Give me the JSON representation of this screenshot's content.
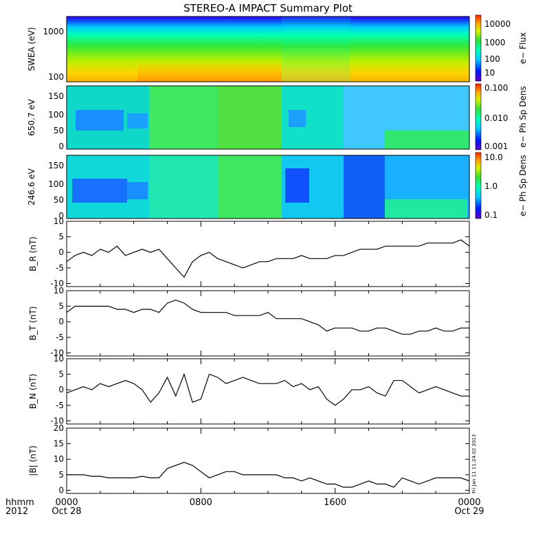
{
  "title": "STEREO-A IMPACT Summary Plot",
  "stamp": "Fri Jan 11 11:24:02 2013",
  "time_axis": {
    "labels": [
      {
        "hours": 0,
        "time": "0000",
        "date": "Oct 28"
      },
      {
        "hours": 8,
        "time": "0800",
        "date": ""
      },
      {
        "hours": 16,
        "time": "1600",
        "date": ""
      },
      {
        "hours": 24,
        "time": "0000",
        "date": "Oct 29"
      }
    ],
    "corner_top": "hhmm",
    "corner_bottom": "2012"
  },
  "colorbars": [
    {
      "label": "e− Flux",
      "ticks": [
        "10000",
        "1000",
        "100",
        "10"
      ]
    },
    {
      "label": "e− Ph Sp Dens",
      "ticks": [
        "0.100",
        "0.010",
        "0.001"
      ]
    },
    {
      "label": "e− Ph Sp Dens",
      "ticks": [
        "10.0",
        "1.0",
        "0.1"
      ]
    }
  ],
  "spectrograms": [
    {
      "ylabel": "SWEA (eV)",
      "yticks": [
        "1000",
        "100"
      ]
    },
    {
      "ylabel": "650.7 eV",
      "yticks": [
        "150",
        "100",
        "50",
        "0"
      ]
    },
    {
      "ylabel": "246.6 eV",
      "yticks": [
        "150",
        "100",
        "50",
        "0"
      ]
    }
  ],
  "chart_data": [
    {
      "type": "line",
      "ylabel": "B_R (nT)",
      "yticks": [
        "10",
        "5",
        "0",
        "-5",
        "-10"
      ],
      "ylim": [
        -11,
        10
      ],
      "x_hours": [
        0,
        0.5,
        1,
        1.5,
        2,
        2.5,
        3,
        3.5,
        4,
        4.5,
        5,
        5.5,
        6,
        6.5,
        7,
        7.5,
        8,
        8.5,
        9,
        9.5,
        10,
        10.5,
        11,
        11.5,
        12,
        12.5,
        13,
        13.5,
        14,
        14.5,
        15,
        15.5,
        16,
        16.5,
        17,
        17.5,
        18,
        18.5,
        19,
        19.5,
        20,
        20.5,
        21,
        21.5,
        22,
        22.5,
        23,
        23.5,
        24
      ],
      "values": [
        -3,
        -1,
        0,
        -1,
        1,
        0,
        2,
        -1,
        0,
        1,
        0,
        1,
        -2,
        -5,
        -8,
        -3,
        -1,
        0,
        -2,
        -3,
        -4,
        -5,
        -4,
        -3,
        -3,
        -2,
        -2,
        -2,
        -1,
        -2,
        -2,
        -2,
        -1,
        -1,
        0,
        1,
        1,
        1,
        2,
        2,
        2,
        2,
        2,
        3,
        3,
        3,
        3,
        4,
        2
      ]
    },
    {
      "type": "line",
      "ylabel": "B_T (nT)",
      "yticks": [
        "10",
        "5",
        "0",
        "-5",
        "-10"
      ],
      "ylim": [
        -11,
        10
      ],
      "x_hours": [
        0,
        0.5,
        1,
        1.5,
        2,
        2.5,
        3,
        3.5,
        4,
        4.5,
        5,
        5.5,
        6,
        6.5,
        7,
        7.5,
        8,
        8.5,
        9,
        9.5,
        10,
        10.5,
        11,
        11.5,
        12,
        12.5,
        13,
        13.5,
        14,
        14.5,
        15,
        15.5,
        16,
        16.5,
        17,
        17.5,
        18,
        18.5,
        19,
        19.5,
        20,
        20.5,
        21,
        21.5,
        22,
        22.5,
        23,
        23.5,
        24
      ],
      "values": [
        3,
        5,
        5,
        5,
        5,
        5,
        4,
        4,
        3,
        4,
        4,
        3,
        6,
        7,
        6,
        4,
        3,
        3,
        3,
        3,
        2,
        2,
        2,
        2,
        3,
        1,
        1,
        1,
        1,
        0,
        -1,
        -3,
        -2,
        -2,
        -2,
        -3,
        -3,
        -2,
        -2,
        -3,
        -4,
        -4,
        -3,
        -3,
        -2,
        -3,
        -3,
        -2,
        -2
      ]
    },
    {
      "type": "line",
      "ylabel": "B_N (nT)",
      "yticks": [
        "10",
        "5",
        "0",
        "-5",
        "-10"
      ],
      "ylim": [
        -11,
        10
      ],
      "x_hours": [
        0,
        0.5,
        1,
        1.5,
        2,
        2.5,
        3,
        3.5,
        4,
        4.5,
        5,
        5.5,
        6,
        6.5,
        7,
        7.5,
        8,
        8.5,
        9,
        9.5,
        10,
        10.5,
        11,
        11.5,
        12,
        12.5,
        13,
        13.5,
        14,
        14.5,
        15,
        15.5,
        16,
        16.5,
        17,
        17.5,
        18,
        18.5,
        19,
        19.5,
        20,
        20.5,
        21,
        21.5,
        22,
        22.5,
        23,
        23.5,
        24
      ],
      "values": [
        -1,
        0,
        1,
        0,
        2,
        1,
        2,
        3,
        2,
        0,
        -4,
        -1,
        4,
        -2,
        5,
        -4,
        -3,
        5,
        4,
        2,
        3,
        4,
        3,
        2,
        2,
        2,
        3,
        1,
        2,
        0,
        1,
        -3,
        -5,
        -3,
        0,
        0,
        1,
        -1,
        -2,
        3,
        3,
        1,
        -1,
        0,
        1,
        0,
        -1,
        -2,
        -2
      ]
    },
    {
      "type": "line",
      "ylabel": "|B| (nT)",
      "yticks": [
        "20",
        "15",
        "10",
        "5",
        "0"
      ],
      "ylim": [
        -1,
        20
      ],
      "x_hours": [
        0,
        0.5,
        1,
        1.5,
        2,
        2.5,
        3,
        3.5,
        4,
        4.5,
        5,
        5.5,
        6,
        6.5,
        7,
        7.5,
        8,
        8.5,
        9,
        9.5,
        10,
        10.5,
        11,
        11.5,
        12,
        12.5,
        13,
        13.5,
        14,
        14.5,
        15,
        15.5,
        16,
        16.5,
        17,
        17.5,
        18,
        18.5,
        19,
        19.5,
        20,
        20.5,
        21,
        21.5,
        22,
        22.5,
        23,
        23.5,
        24
      ],
      "values": [
        5,
        5,
        5,
        4.5,
        4.5,
        4,
        4,
        4,
        4,
        4.5,
        4,
        4,
        7,
        8,
        9,
        8,
        6,
        4,
        5,
        6,
        6,
        5,
        5,
        5,
        5,
        5,
        4,
        4,
        3,
        4,
        3,
        2,
        2,
        1,
        1,
        2,
        3,
        2,
        2,
        1,
        4,
        3,
        2,
        3,
        4,
        4,
        4,
        4,
        3
      ]
    }
  ]
}
